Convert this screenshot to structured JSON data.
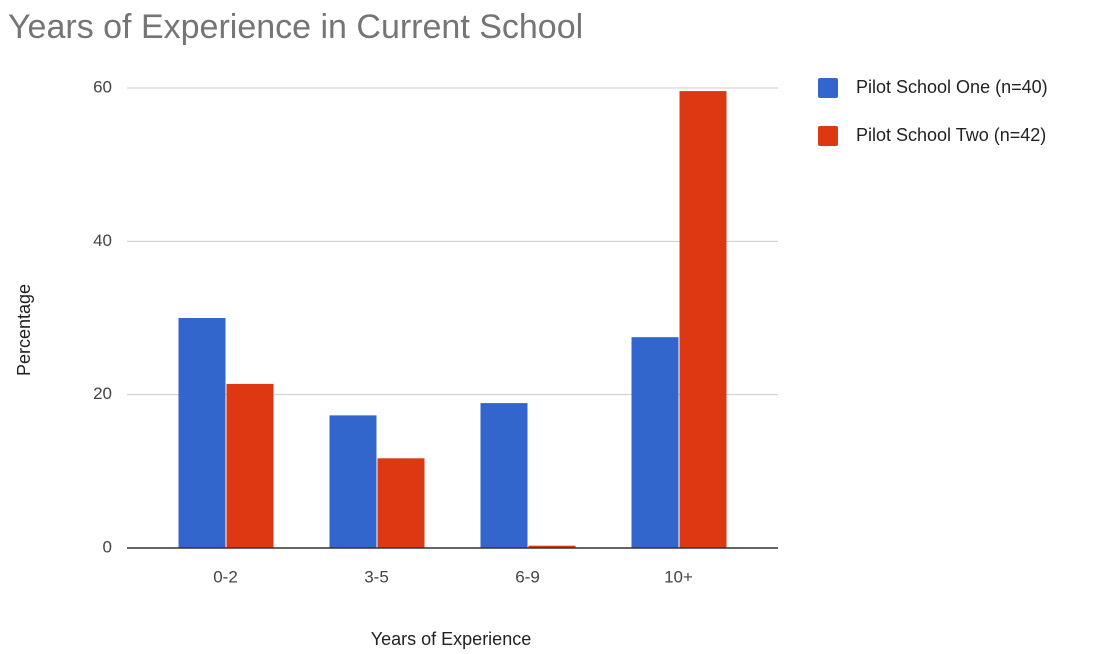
{
  "chart_data": {
    "type": "bar",
    "title": "Years of Experience in Current School",
    "x_label": "Years of Experience",
    "y_label": "Percentage",
    "categories": [
      "0-2",
      "3-5",
      "6-9",
      "10+"
    ],
    "series": [
      {
        "name": "Pilot School One (n=40)",
        "color": "#3366cc",
        "values": [
          30,
          17.3,
          18.9,
          27.5
        ]
      },
      {
        "name": "Pilot School Two (n=42)",
        "color": "#dc3912",
        "values": [
          21.4,
          11.7,
          0.3,
          59.6
        ]
      }
    ],
    "ylim": [
      0,
      60
    ],
    "yticks": [
      0,
      20,
      40,
      60
    ],
    "grid": true,
    "legend": "right"
  }
}
